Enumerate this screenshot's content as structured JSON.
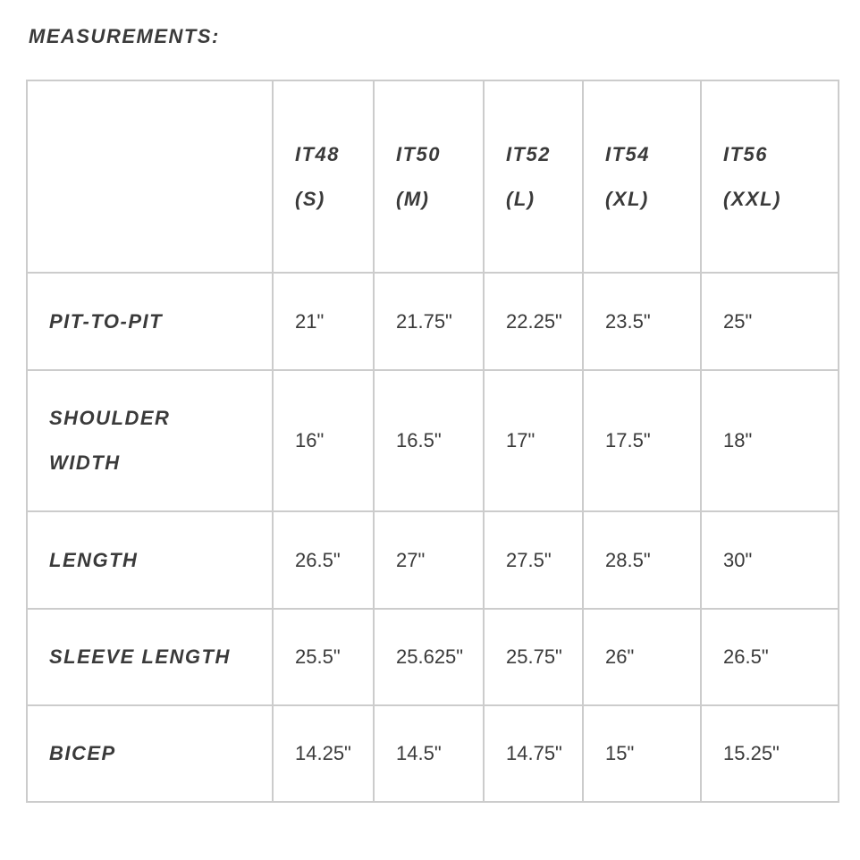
{
  "title": "MEASUREMENTS:",
  "columns": [
    {
      "line1": "IT48",
      "line2": "(S)"
    },
    {
      "line1": "IT50",
      "line2": "(M)"
    },
    {
      "line1": "IT52",
      "line2": "(L)"
    },
    {
      "line1": "IT54",
      "line2": "(XL)"
    },
    {
      "line1": "IT56",
      "line2": "(XXL)"
    }
  ],
  "rows": [
    {
      "label": "PIT-TO-PIT",
      "values": [
        "21\"",
        "21.75\"",
        "22.25\"",
        "23.5\"",
        "25\""
      ]
    },
    {
      "label": "SHOULDER WIDTH",
      "values": [
        "16\"",
        "16.5\"",
        "17\"",
        "17.5\"",
        "18\""
      ]
    },
    {
      "label": "LENGTH",
      "values": [
        "26.5\"",
        "27\"",
        "27.5\"",
        "28.5\"",
        "30\""
      ]
    },
    {
      "label": "SLEEVE LENGTH",
      "values": [
        "25.5\"",
        "25.625\"",
        "25.75\"",
        "26\"",
        "26.5\""
      ]
    },
    {
      "label": "BICEP",
      "values": [
        "14.25\"",
        "14.5\"",
        "14.75\"",
        "15\"",
        "15.25\""
      ]
    }
  ]
}
